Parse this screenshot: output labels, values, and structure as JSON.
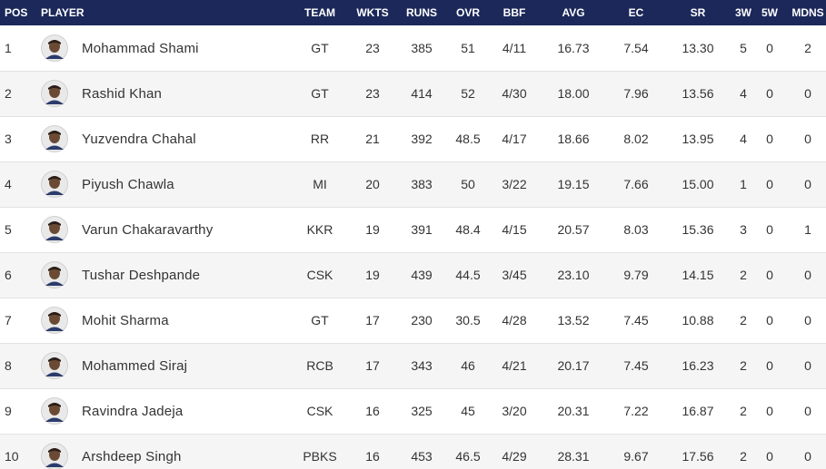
{
  "table": {
    "headers": [
      "POS",
      "PLAYER",
      "TEAM",
      "WKTS",
      "RUNS",
      "OVR",
      "BBF",
      "AVG",
      "EC",
      "SR",
      "3W",
      "5W",
      "MDNS"
    ],
    "rows": [
      [
        "1",
        "Mohammad Shami",
        "GT",
        "23",
        "385",
        "51",
        "4/11",
        "16.73",
        "7.54",
        "13.30",
        "5",
        "0",
        "2"
      ],
      [
        "2",
        "Rashid Khan",
        "GT",
        "23",
        "414",
        "52",
        "4/30",
        "18.00",
        "7.96",
        "13.56",
        "4",
        "0",
        "0"
      ],
      [
        "3",
        "Yuzvendra Chahal",
        "RR",
        "21",
        "392",
        "48.5",
        "4/17",
        "18.66",
        "8.02",
        "13.95",
        "4",
        "0",
        "0"
      ],
      [
        "4",
        "Piyush Chawla",
        "MI",
        "20",
        "383",
        "50",
        "3/22",
        "19.15",
        "7.66",
        "15.00",
        "1",
        "0",
        "0"
      ],
      [
        "5",
        "Varun Chakaravarthy",
        "KKR",
        "19",
        "391",
        "48.4",
        "4/15",
        "20.57",
        "8.03",
        "15.36",
        "3",
        "0",
        "1"
      ],
      [
        "6",
        "Tushar Deshpande",
        "CSK",
        "19",
        "439",
        "44.5",
        "3/45",
        "23.10",
        "9.79",
        "14.15",
        "2",
        "0",
        "0"
      ],
      [
        "7",
        "Mohit Sharma",
        "GT",
        "17",
        "230",
        "30.5",
        "4/28",
        "13.52",
        "7.45",
        "10.88",
        "2",
        "0",
        "0"
      ],
      [
        "8",
        "Mohammed Siraj",
        "RCB",
        "17",
        "343",
        "46",
        "4/21",
        "20.17",
        "7.45",
        "16.23",
        "2",
        "0",
        "0"
      ],
      [
        "9",
        "Ravindra Jadeja",
        "CSK",
        "16",
        "325",
        "45",
        "3/20",
        "20.31",
        "7.22",
        "16.87",
        "2",
        "0",
        "0"
      ],
      [
        "10",
        "Arshdeep Singh",
        "PBKS",
        "16",
        "453",
        "46.5",
        "4/29",
        "28.31",
        "9.67",
        "17.56",
        "2",
        "0",
        "0"
      ]
    ]
  }
}
